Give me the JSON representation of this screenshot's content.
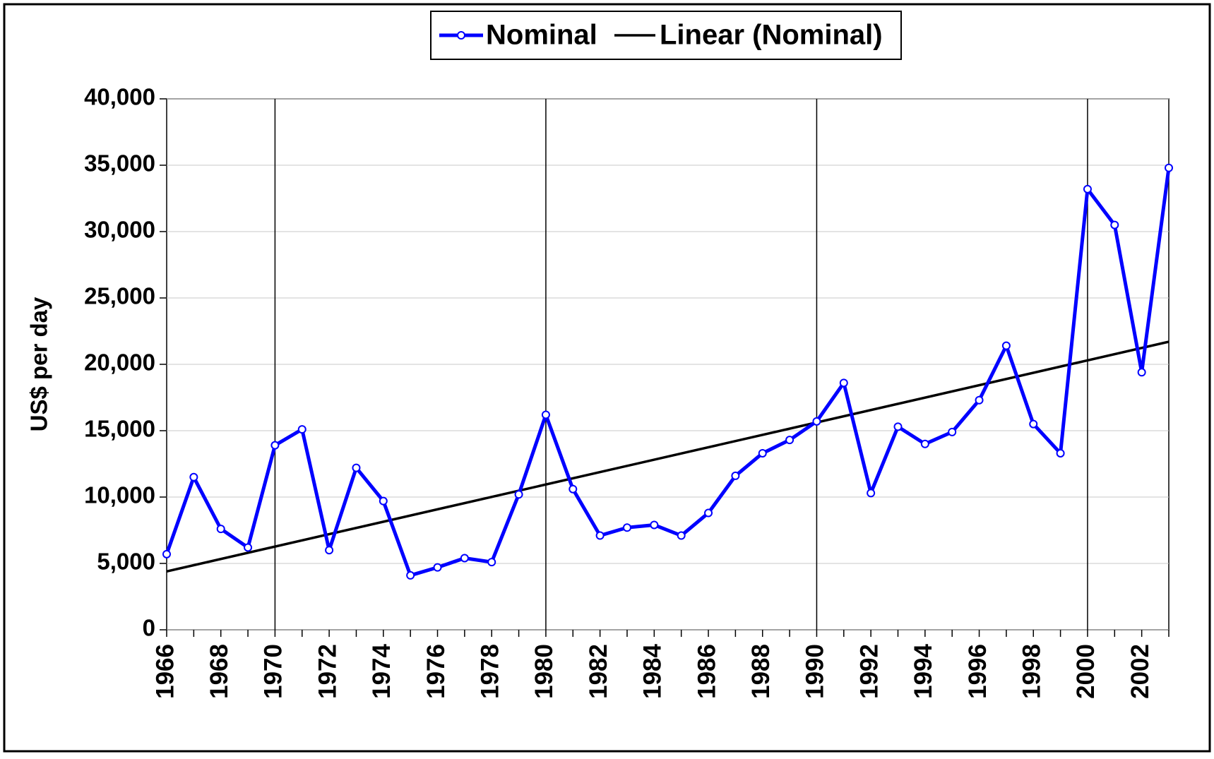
{
  "chart_data": {
    "type": "line",
    "y_label": "US$ per day",
    "x": [
      1966,
      1967,
      1968,
      1969,
      1970,
      1971,
      1972,
      1973,
      1974,
      1975,
      1976,
      1977,
      1978,
      1979,
      1980,
      1981,
      1982,
      1983,
      1984,
      1985,
      1986,
      1987,
      1988,
      1989,
      1990,
      1991,
      1992,
      1993,
      1994,
      1995,
      1996,
      1997,
      1998,
      1999,
      2000,
      2001,
      2002,
      2003
    ],
    "series": [
      {
        "name": "Nominal",
        "color": "#0000ff",
        "values": [
          5700,
          11500,
          7600,
          6200,
          13900,
          15100,
          6000,
          12200,
          9700,
          4100,
          4700,
          5400,
          5100,
          10200,
          16200,
          10600,
          7100,
          7700,
          7900,
          7100,
          8800,
          11600,
          13300,
          14300,
          15700,
          18600,
          10300,
          15300,
          14000,
          14900,
          17300,
          21400,
          15500,
          13300,
          33200,
          30500,
          19400,
          34800
        ]
      }
    ],
    "trend": {
      "name": "Linear (Nominal)",
      "color": "#000000",
      "x": [
        1966,
        2003
      ],
      "values": [
        4400,
        21700
      ]
    },
    "xlim": [
      1966,
      2003
    ],
    "xticks": [
      1966,
      1968,
      1970,
      1972,
      1974,
      1976,
      1978,
      1980,
      1982,
      1984,
      1986,
      1988,
      1990,
      1992,
      1994,
      1996,
      1998,
      2000,
      2002
    ],
    "xgrid": [
      1970,
      1980,
      1990,
      2000
    ],
    "ylim": [
      0,
      40000
    ],
    "yticks": [
      0,
      {
        "value": 5000,
        "label": "5,000"
      },
      {
        "value": 10000,
        "label": "10,000"
      },
      {
        "value": 15000,
        "label": "15,000"
      },
      {
        "value": 20000,
        "label": "20,000"
      },
      {
        "value": 25000,
        "label": "25,000"
      },
      {
        "value": 30000,
        "label": "30,000"
      },
      {
        "value": 35000,
        "label": "35,000"
      },
      {
        "value": 40000,
        "label": "40,000"
      }
    ],
    "grid": true,
    "legend": "top"
  }
}
